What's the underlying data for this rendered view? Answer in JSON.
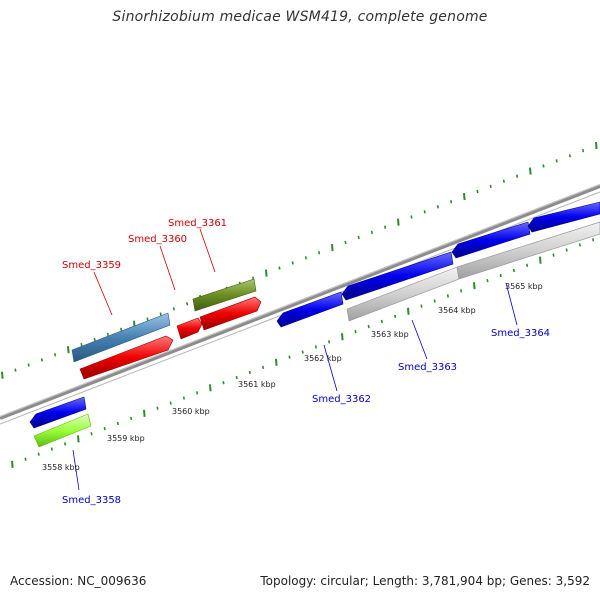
{
  "title": "Sinorhizobium medicae WSM419, complete genome",
  "footer": {
    "accession": "Accession: NC_009636",
    "stats": "Topology: circular; Length: 3,781,904 bp; Genes: 3,592"
  },
  "ticks": [
    {
      "label": "3558 kbp"
    },
    {
      "label": "3559 kbp"
    },
    {
      "label": "3560 kbp"
    },
    {
      "label": "3561 kbp"
    },
    {
      "label": "3562 kbp"
    },
    {
      "label": "3563 kbp"
    },
    {
      "label": "3564 kbp"
    },
    {
      "label": "3565 kbp"
    }
  ],
  "genes": [
    {
      "label": "Smed_3358",
      "strand": "minus"
    },
    {
      "label": "Smed_3359",
      "strand": "plus"
    },
    {
      "label": "Smed_3360",
      "strand": "plus"
    },
    {
      "label": "Smed_3361",
      "strand": "plus"
    },
    {
      "label": "Smed_3362",
      "strand": "minus"
    },
    {
      "label": "Smed_3363",
      "strand": "minus"
    },
    {
      "label": "Smed_3364",
      "strand": "minus"
    }
  ],
  "colors": {
    "backbone": "#8c8c8c",
    "tick": "#2e8b2e",
    "plus_label": "#cc0000",
    "minus_label": "#0000cc",
    "cds_blue": "#0000ee",
    "cds_red": "#ee0000",
    "cds_steel": "#4682b4",
    "cds_olive": "#6b8e23",
    "cds_lime": "#9aff3a",
    "cds_grey": "#d0d0d0"
  }
}
